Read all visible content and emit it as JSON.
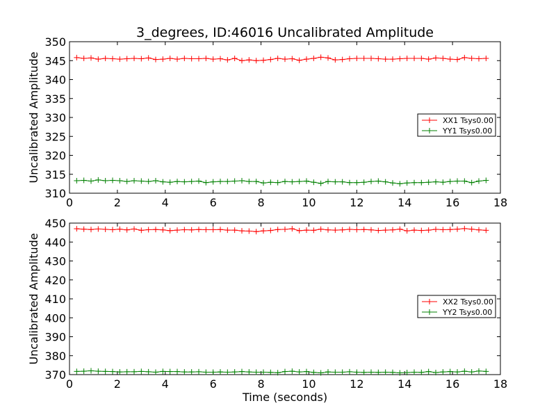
{
  "chart_data": [
    {
      "type": "line",
      "title": "3_degrees, ID:46016 Uncalibrated Amplitude",
      "xlabel": "",
      "ylabel": "Uncalibrated Amplitude",
      "xlim": [
        0,
        18
      ],
      "ylim": [
        310,
        350
      ],
      "xticks": [
        0,
        2,
        4,
        6,
        8,
        10,
        12,
        14,
        16,
        18
      ],
      "yticks": [
        310,
        315,
        320,
        325,
        330,
        335,
        340,
        345,
        350
      ],
      "grid": false,
      "legend_position": "center-right",
      "x": [
        0.3,
        0.6,
        0.9,
        1.2,
        1.5,
        1.8,
        2.1,
        2.4,
        2.7,
        3.0,
        3.3,
        3.6,
        3.9,
        4.2,
        4.5,
        4.8,
        5.1,
        5.4,
        5.7,
        6.0,
        6.3,
        6.6,
        6.9,
        7.2,
        7.5,
        7.8,
        8.1,
        8.4,
        8.7,
        9.0,
        9.3,
        9.6,
        9.9,
        10.2,
        10.5,
        10.8,
        11.1,
        11.4,
        11.7,
        12.0,
        12.3,
        12.6,
        12.9,
        13.2,
        13.5,
        13.8,
        14.1,
        14.4,
        14.7,
        15.0,
        15.3,
        15.6,
        15.9,
        16.2,
        16.5,
        16.8,
        17.1,
        17.4
      ],
      "series": [
        {
          "name": "XX1 Tsys0.00",
          "color": "#ff0000",
          "values": [
            345.8,
            345.6,
            345.7,
            345.4,
            345.6,
            345.5,
            345.4,
            345.5,
            345.6,
            345.5,
            345.7,
            345.3,
            345.4,
            345.6,
            345.4,
            345.6,
            345.5,
            345.5,
            345.6,
            345.4,
            345.5,
            345.2,
            345.6,
            345.0,
            345.2,
            345.0,
            345.1,
            345.3,
            345.6,
            345.4,
            345.5,
            345.1,
            345.4,
            345.6,
            345.9,
            345.7,
            345.2,
            345.3,
            345.5,
            345.6,
            345.6,
            345.6,
            345.5,
            345.4,
            345.4,
            345.5,
            345.6,
            345.6,
            345.6,
            345.4,
            345.7,
            345.6,
            345.4,
            345.3,
            345.8,
            345.6,
            345.5,
            345.6
          ]
        },
        {
          "name": "YY1 Tsys0.00",
          "color": "#008000",
          "values": [
            313.3,
            313.4,
            313.2,
            313.5,
            313.3,
            313.4,
            313.3,
            313.1,
            313.3,
            313.2,
            313.1,
            313.3,
            313.0,
            312.9,
            313.1,
            313.0,
            313.1,
            313.2,
            312.8,
            313.0,
            313.1,
            313.1,
            313.2,
            313.3,
            313.1,
            313.1,
            312.7,
            312.9,
            312.8,
            313.1,
            313.0,
            313.1,
            313.2,
            312.9,
            312.6,
            313.1,
            313.0,
            313.0,
            312.8,
            312.8,
            312.9,
            313.1,
            313.2,
            313.0,
            312.7,
            312.5,
            312.7,
            312.8,
            312.8,
            312.9,
            313.0,
            312.9,
            313.1,
            313.2,
            313.2,
            312.8,
            313.2,
            313.4
          ]
        }
      ]
    },
    {
      "type": "line",
      "title": "",
      "xlabel": "Time (seconds)",
      "ylabel": "Uncalibrated Amplitude",
      "xlim": [
        0,
        18
      ],
      "ylim": [
        370,
        450
      ],
      "xticks": [
        0,
        2,
        4,
        6,
        8,
        10,
        12,
        14,
        16,
        18
      ],
      "yticks": [
        370,
        380,
        390,
        400,
        410,
        420,
        430,
        440,
        450
      ],
      "grid": false,
      "legend_position": "center-right",
      "x": [
        0.3,
        0.6,
        0.9,
        1.2,
        1.5,
        1.8,
        2.1,
        2.4,
        2.7,
        3.0,
        3.3,
        3.6,
        3.9,
        4.2,
        4.5,
        4.8,
        5.1,
        5.4,
        5.7,
        6.0,
        6.3,
        6.6,
        6.9,
        7.2,
        7.5,
        7.8,
        8.1,
        8.4,
        8.7,
        9.0,
        9.3,
        9.6,
        9.9,
        10.2,
        10.5,
        10.8,
        11.1,
        11.4,
        11.7,
        12.0,
        12.3,
        12.6,
        12.9,
        13.2,
        13.5,
        13.8,
        14.1,
        14.4,
        14.7,
        15.0,
        15.3,
        15.6,
        15.9,
        16.2,
        16.5,
        16.8,
        17.1,
        17.4
      ],
      "series": [
        {
          "name": "XX2 Tsys0.00",
          "color": "#ff0000",
          "values": [
            447.0,
            446.8,
            446.6,
            446.9,
            446.7,
            446.5,
            446.8,
            446.4,
            446.9,
            446.2,
            446.5,
            446.6,
            446.4,
            446.0,
            446.3,
            446.5,
            446.4,
            446.6,
            446.5,
            446.5,
            446.6,
            446.3,
            446.3,
            445.9,
            445.8,
            445.5,
            445.9,
            446.1,
            446.6,
            446.7,
            447.0,
            446.0,
            446.3,
            446.2,
            446.8,
            446.4,
            446.3,
            446.4,
            446.7,
            446.5,
            446.6,
            446.4,
            446.1,
            446.3,
            446.4,
            446.8,
            445.9,
            446.3,
            446.1,
            446.3,
            446.7,
            446.5,
            446.6,
            446.8,
            447.1,
            446.8,
            446.4,
            446.2
          ]
        },
        {
          "name": "YY2 Tsys0.00",
          "color": "#008000",
          "values": [
            371.7,
            371.8,
            372.0,
            371.8,
            371.7,
            371.6,
            371.4,
            371.5,
            371.5,
            371.7,
            371.5,
            371.3,
            371.7,
            371.6,
            371.6,
            371.4,
            371.4,
            371.5,
            371.3,
            371.3,
            371.4,
            371.3,
            371.4,
            371.6,
            371.4,
            371.3,
            371.3,
            371.2,
            371.0,
            371.6,
            371.8,
            371.4,
            371.6,
            371.2,
            370.9,
            371.4,
            371.3,
            371.3,
            371.5,
            371.3,
            371.2,
            371.3,
            371.2,
            371.3,
            371.2,
            370.9,
            371.1,
            371.3,
            371.2,
            371.6,
            371.1,
            371.4,
            371.6,
            371.4,
            371.8,
            371.4,
            371.9,
            371.7
          ]
        }
      ]
    }
  ]
}
